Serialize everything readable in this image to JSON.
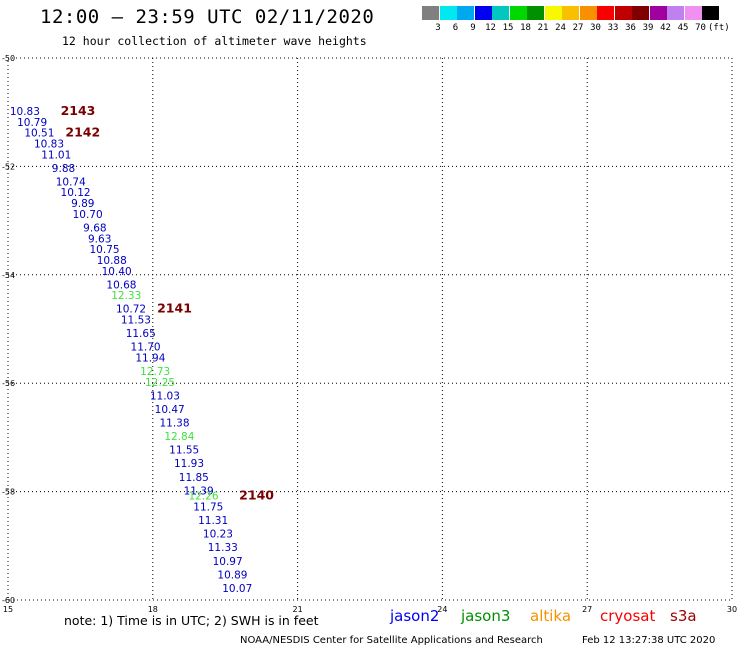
{
  "header": {
    "title": "12:00 – 23:59 UTC 02/11/2020",
    "subtitle": "12 hour collection of altimeter wave heights"
  },
  "legend": {
    "colors": [
      "#808080",
      "#00e8f0",
      "#00a8f0",
      "#0000f0",
      "#00c8c0",
      "#00d800",
      "#009000",
      "#f8f800",
      "#f8c000",
      "#f89000",
      "#f80000",
      "#c00000",
      "#800000",
      "#a000a0",
      "#c080f0",
      "#f090f0",
      "#000000"
    ],
    "labels": [
      "3",
      "6",
      "9",
      "12",
      "15",
      "18",
      "21",
      "24",
      "27",
      "30",
      "33",
      "36",
      "39",
      "42",
      "45",
      "70",
      "(ft)"
    ]
  },
  "axes": {
    "x_ticks": [
      "15",
      "18",
      "21",
      "24",
      "27",
      "30"
    ],
    "y_ticks": [
      "-50",
      "-52",
      "-54",
      "-56",
      "-58",
      "-60"
    ]
  },
  "chart_data": {
    "type": "scatter",
    "xlim": [
      15,
      30
    ],
    "ylim": [
      -60,
      -50
    ],
    "grid": true,
    "points": [
      {
        "lon": 15.35,
        "lat": -51.05,
        "label": "10.83",
        "color": "#0000c0"
      },
      {
        "lon": 15.5,
        "lat": -51.25,
        "label": "10.79",
        "color": "#0000c0"
      },
      {
        "lon": 15.65,
        "lat": -51.45,
        "label": "10.51",
        "color": "#0000c0"
      },
      {
        "lon": 15.85,
        "lat": -51.65,
        "label": "10.83",
        "color": "#0000c0"
      },
      {
        "lon": 16.0,
        "lat": -51.85,
        "label": "11.01",
        "color": "#0000c0"
      },
      {
        "lon": 16.15,
        "lat": -52.1,
        "label": "9.88",
        "color": "#0000c0"
      },
      {
        "lon": 16.3,
        "lat": -52.35,
        "label": "10.74",
        "color": "#0000c0"
      },
      {
        "lon": 16.4,
        "lat": -52.55,
        "label": "10.12",
        "color": "#0000c0"
      },
      {
        "lon": 16.55,
        "lat": -52.75,
        "label": "9.89",
        "color": "#0000c0"
      },
      {
        "lon": 16.65,
        "lat": -52.95,
        "label": "10.70",
        "color": "#0000c0"
      },
      {
        "lon": 16.8,
        "lat": -53.2,
        "label": "9.68",
        "color": "#0000c0"
      },
      {
        "lon": 16.9,
        "lat": -53.4,
        "label": "9.63",
        "color": "#0000c0"
      },
      {
        "lon": 17.0,
        "lat": -53.6,
        "label": "10.75",
        "color": "#0000c0"
      },
      {
        "lon": 17.15,
        "lat": -53.8,
        "label": "10.88",
        "color": "#0000c0"
      },
      {
        "lon": 17.25,
        "lat": -54.0,
        "label": "10.40",
        "color": "#0000c0"
      },
      {
        "lon": 17.35,
        "lat": -54.25,
        "label": "10.68",
        "color": "#0000c0"
      },
      {
        "lon": 17.45,
        "lat": -54.45,
        "label": "12.33",
        "color": "#40e040"
      },
      {
        "lon": 17.55,
        "lat": -54.7,
        "label": "10.72",
        "color": "#0000c0"
      },
      {
        "lon": 17.65,
        "lat": -54.9,
        "label": "11.53",
        "color": "#0000c0"
      },
      {
        "lon": 17.75,
        "lat": -55.15,
        "label": "11.65",
        "color": "#0000c0"
      },
      {
        "lon": 17.85,
        "lat": -55.4,
        "label": "11.70",
        "color": "#0000c0"
      },
      {
        "lon": 17.95,
        "lat": -55.6,
        "label": "11.94",
        "color": "#0000c0"
      },
      {
        "lon": 18.05,
        "lat": -55.85,
        "label": "12.73",
        "color": "#40e040"
      },
      {
        "lon": 18.15,
        "lat": -56.05,
        "label": "12.25",
        "color": "#40e040"
      },
      {
        "lon": 18.25,
        "lat": -56.3,
        "label": "11.03",
        "color": "#0000c0"
      },
      {
        "lon": 18.35,
        "lat": -56.55,
        "label": "10.47",
        "color": "#0000c0"
      },
      {
        "lon": 18.45,
        "lat": -56.8,
        "label": "11.38",
        "color": "#0000c0"
      },
      {
        "lon": 18.55,
        "lat": -57.05,
        "label": "12.84",
        "color": "#40e040"
      },
      {
        "lon": 18.65,
        "lat": -57.3,
        "label": "11.55",
        "color": "#0000c0"
      },
      {
        "lon": 18.75,
        "lat": -57.55,
        "label": "11.93",
        "color": "#0000c0"
      },
      {
        "lon": 18.85,
        "lat": -57.8,
        "label": "11.85",
        "color": "#0000c0"
      },
      {
        "lon": 18.95,
        "lat": -58.05,
        "label": "11.39",
        "color": "#0000c0"
      },
      {
        "lon": 19.05,
        "lat": -58.15,
        "label": "12.26",
        "color": "#40e040"
      },
      {
        "lon": 19.15,
        "lat": -58.35,
        "label": "11.75",
        "color": "#0000c0"
      },
      {
        "lon": 19.25,
        "lat": -58.6,
        "label": "11.31",
        "color": "#0000c0"
      },
      {
        "lon": 19.35,
        "lat": -58.85,
        "label": "10.23",
        "color": "#0000c0"
      },
      {
        "lon": 19.45,
        "lat": -59.1,
        "label": "11.33",
        "color": "#0000c0"
      },
      {
        "lon": 19.55,
        "lat": -59.35,
        "label": "10.97",
        "color": "#0000c0"
      },
      {
        "lon": 19.65,
        "lat": -59.6,
        "label": "10.89",
        "color": "#0000c0"
      },
      {
        "lon": 19.75,
        "lat": -59.85,
        "label": "10.07",
        "color": "#0000c0"
      }
    ],
    "pass_labels": [
      {
        "lon": 16.45,
        "lat": -51.05,
        "label": "2143"
      },
      {
        "lon": 16.55,
        "lat": -51.45,
        "label": "2142"
      },
      {
        "lon": 18.45,
        "lat": -54.7,
        "label": "2141"
      },
      {
        "lon": 20.15,
        "lat": -58.15,
        "label": "2140"
      }
    ]
  },
  "footer": {
    "note": "note: 1) Time is in UTC; 2) SWH is in feet",
    "satellites": [
      {
        "name": "jason2",
        "color": "#0000f0"
      },
      {
        "name": "jason3",
        "color": "#009000"
      },
      {
        "name": "altika",
        "color": "#f89000"
      },
      {
        "name": "cryosat",
        "color": "#f80000"
      },
      {
        "name": "s3a",
        "color": "#a00000"
      }
    ],
    "credit": "NOAA/NESDIS Center for Satellite Applications and Research",
    "timestamp": "Feb 12 13:27:38 UTC 2020"
  }
}
